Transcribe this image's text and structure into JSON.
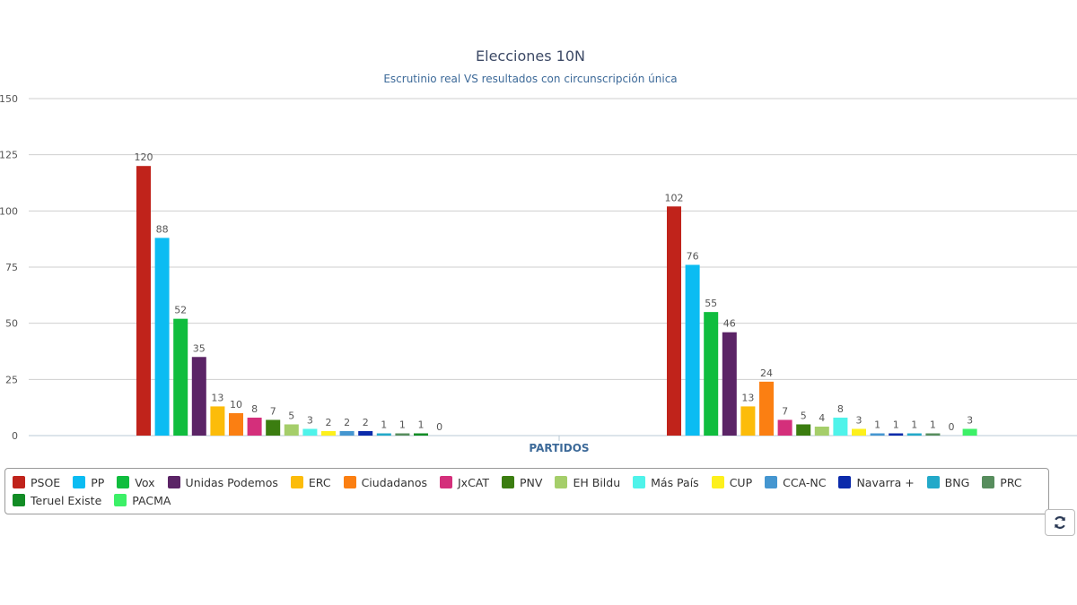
{
  "chart_data": {
    "type": "bar",
    "title": "Elecciones 10N",
    "subtitle": "Escrutinio real VS resultados con circunscripción única",
    "xlabel": "PARTIDOS",
    "ylabel": "",
    "ylim": [
      0,
      150
    ],
    "yticks": [
      "0",
      "25",
      "50",
      "75",
      "100",
      "125",
      "150"
    ],
    "grid": true,
    "legend_position": "bottom",
    "groups": 2,
    "series": [
      {
        "name": "PSOE",
        "color": "#c0231b",
        "values": [
          120,
          102
        ]
      },
      {
        "name": "PP",
        "color": "#0bbcf2",
        "values": [
          88,
          76
        ]
      },
      {
        "name": "Vox",
        "color": "#10bd3e",
        "values": [
          52,
          55
        ]
      },
      {
        "name": "Unidas Podemos",
        "color": "#5b2466",
        "values": [
          35,
          46
        ]
      },
      {
        "name": "ERC",
        "color": "#fcbc0a",
        "values": [
          13,
          13
        ]
      },
      {
        "name": "Ciudadanos",
        "color": "#fb7f12",
        "values": [
          10,
          24
        ]
      },
      {
        "name": "JxCAT",
        "color": "#d42f7b",
        "values": [
          8,
          7
        ]
      },
      {
        "name": "PNV",
        "color": "#3b7d10",
        "values": [
          7,
          5
        ]
      },
      {
        "name": "EH Bildu",
        "color": "#a5ce6a",
        "values": [
          5,
          4
        ]
      },
      {
        "name": "Más País",
        "color": "#4ff3ea",
        "values": [
          3,
          8
        ]
      },
      {
        "name": "CUP",
        "color": "#fdf01c",
        "values": [
          2,
          3
        ]
      },
      {
        "name": "CCA-NC",
        "color": "#4596d0",
        "values": [
          2,
          1
        ]
      },
      {
        "name": "Navarra +",
        "color": "#0c2bab",
        "values": [
          2,
          1
        ]
      },
      {
        "name": "BNG",
        "color": "#23a9c9",
        "values": [
          1,
          1
        ]
      },
      {
        "name": "PRC",
        "color": "#578d5d",
        "values": [
          1,
          1
        ]
      },
      {
        "name": "Teruel Existe",
        "color": "#128c25",
        "values": [
          1,
          0
        ]
      },
      {
        "name": "PACMA",
        "color": "#3cf067",
        "values": [
          0,
          3
        ]
      }
    ]
  },
  "controls": {
    "reset_icon": "refresh-icon"
  }
}
